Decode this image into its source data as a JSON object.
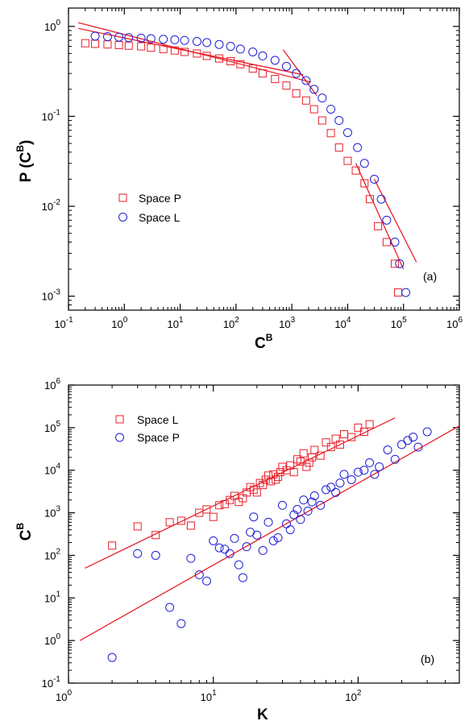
{
  "colors": {
    "space_p": "#e8202a",
    "space_l": "#1f1fd6",
    "fit_line": "#e8202a",
    "axes": "#000000"
  },
  "chart_data": [
    {
      "type": "scatter",
      "panel_label": "(a)",
      "xlabel_base": "C",
      "xlabel_sup": "B",
      "ylabel_pre": "P (C",
      "ylabel_sup": "B",
      "ylabel_post": ")",
      "xscale": "log",
      "yscale": "log",
      "xlim": [
        0.1,
        1000000
      ],
      "ylim": [
        0.0007,
        1.6
      ],
      "x_ticks": [
        {
          "v": 0.1,
          "m": "-1"
        },
        {
          "v": 1,
          "m": "0"
        },
        {
          "v": 10,
          "m": "1"
        },
        {
          "v": 100,
          "m": "2"
        },
        {
          "v": 1000,
          "m": "3"
        },
        {
          "v": 10000,
          "m": "4"
        },
        {
          "v": 100000,
          "m": "5"
        },
        {
          "v": 1000000,
          "m": "6"
        }
      ],
      "y_ticks": [
        {
          "v": 0.001,
          "m": "-3"
        },
        {
          "v": 0.01,
          "m": "-2"
        },
        {
          "v": 0.1,
          "m": "-1"
        },
        {
          "v": 1,
          "m": "0"
        }
      ],
      "legend_position": "center-left",
      "series": [
        {
          "name": "Space P",
          "marker": "square",
          "color": "#e8202a",
          "x": [
            0.2,
            0.3,
            0.5,
            0.8,
            1.2,
            2,
            3,
            5,
            8,
            12,
            20,
            30,
            50,
            80,
            120,
            200,
            300,
            500,
            800,
            1200,
            1800,
            2500,
            3500,
            5000,
            7000,
            10000,
            14000,
            20000,
            25000,
            35000,
            50000,
            70000,
            80000
          ],
          "y": [
            0.65,
            0.64,
            0.63,
            0.62,
            0.61,
            0.6,
            0.58,
            0.56,
            0.54,
            0.52,
            0.5,
            0.47,
            0.44,
            0.41,
            0.38,
            0.34,
            0.3,
            0.26,
            0.22,
            0.18,
            0.15,
            0.12,
            0.09,
            0.065,
            0.045,
            0.032,
            0.025,
            0.018,
            0.012,
            0.006,
            0.004,
            0.0023,
            0.0011
          ]
        },
        {
          "name": "Space L",
          "marker": "circle",
          "color": "#1f1fd6",
          "x": [
            0.3,
            0.5,
            0.8,
            1.2,
            2,
            3,
            5,
            8,
            12,
            20,
            30,
            50,
            80,
            120,
            200,
            300,
            500,
            800,
            1200,
            1800,
            2500,
            3500,
            5000,
            7000,
            10000,
            15000,
            20000,
            30000,
            40000,
            50000,
            70000,
            85000,
            110000
          ],
          "y": [
            0.78,
            0.77,
            0.76,
            0.75,
            0.74,
            0.73,
            0.72,
            0.71,
            0.7,
            0.68,
            0.66,
            0.63,
            0.6,
            0.56,
            0.52,
            0.47,
            0.42,
            0.36,
            0.3,
            0.25,
            0.2,
            0.16,
            0.12,
            0.09,
            0.066,
            0.045,
            0.03,
            0.02,
            0.012,
            0.007,
            0.004,
            0.0023,
            0.0011
          ]
        }
      ],
      "fit_lines": [
        {
          "x": [
            0.15,
            2200
          ],
          "y": [
            1.1,
            0.24
          ]
        },
        {
          "x": [
            0.15,
            1600
          ],
          "y": [
            0.95,
            0.29
          ]
        },
        {
          "x": [
            700,
            2800
          ],
          "y": [
            0.55,
            0.17
          ]
        },
        {
          "x": [
            30000,
            170000
          ],
          "y": [
            0.02,
            0.0024
          ]
        },
        {
          "x": [
            14000,
            100000
          ],
          "y": [
            0.03,
            0.002
          ]
        }
      ]
    },
    {
      "type": "scatter",
      "panel_label": "(b)",
      "xlabel_base": "K",
      "xlabel_sup": "",
      "ylabel_pre": "C",
      "ylabel_sup": "B",
      "ylabel_post": "",
      "xscale": "log",
      "yscale": "log",
      "xlim": [
        1,
        500
      ],
      "ylim": [
        0.1,
        1000000
      ],
      "x_ticks": [
        {
          "v": 1,
          "m": "0"
        },
        {
          "v": 10,
          "m": "1"
        },
        {
          "v": 100,
          "m": "2"
        }
      ],
      "y_ticks": [
        {
          "v": 0.1,
          "m": "-1"
        },
        {
          "v": 1,
          "m": "0"
        },
        {
          "v": 10,
          "m": "1"
        },
        {
          "v": 100,
          "m": "2"
        },
        {
          "v": 1000,
          "m": "3"
        },
        {
          "v": 10000,
          "m": "4"
        },
        {
          "v": 100000,
          "m": "5"
        },
        {
          "v": 1000000,
          "m": "6"
        }
      ],
      "legend_position": "top-left",
      "series": [
        {
          "name": "Space L",
          "marker": "square",
          "color": "#e8202a",
          "x": [
            2,
            3,
            4,
            5,
            6,
            7,
            8,
            9,
            10,
            11,
            12,
            13,
            14,
            15,
            16,
            17,
            18,
            19,
            20,
            21,
            22,
            23,
            24,
            25,
            26,
            27,
            28,
            29,
            30,
            32,
            34,
            36,
            38,
            40,
            42,
            44,
            46,
            48,
            50,
            55,
            60,
            65,
            70,
            75,
            80,
            90,
            100,
            110,
            120
          ],
          "y": [
            170,
            480,
            300,
            600,
            650,
            500,
            1000,
            1200,
            800,
            1500,
            1600,
            2000,
            2500,
            1800,
            2200,
            3000,
            4000,
            3500,
            3000,
            5000,
            4500,
            6000,
            7500,
            5500,
            8000,
            6000,
            7000,
            9000,
            12000,
            10000,
            13000,
            9000,
            18000,
            16000,
            25000,
            12000,
            15000,
            20000,
            30000,
            22000,
            45000,
            35000,
            55000,
            40000,
            70000,
            60000,
            100000,
            80000,
            120000
          ]
        },
        {
          "name": "Space P",
          "marker": "circle",
          "color": "#1f1fd6",
          "x": [
            2,
            3,
            4,
            5,
            6,
            7,
            8,
            9,
            10,
            11,
            12,
            13,
            14,
            15,
            16,
            17,
            18,
            19,
            20,
            22,
            24,
            26,
            28,
            30,
            32,
            34,
            36,
            38,
            40,
            42,
            45,
            48,
            50,
            55,
            60,
            65,
            70,
            75,
            80,
            90,
            100,
            110,
            120,
            130,
            140,
            160,
            180,
            200,
            220,
            240,
            260,
            300
          ],
          "y": [
            0.4,
            110,
            100,
            6,
            2.5,
            85,
            35,
            25,
            220,
            150,
            140,
            110,
            250,
            60,
            30,
            160,
            350,
            800,
            300,
            130,
            600,
            220,
            260,
            1500,
            550,
            400,
            900,
            1200,
            700,
            2000,
            1100,
            1800,
            2500,
            1500,
            3500,
            4000,
            3000,
            5000,
            8000,
            6000,
            9000,
            10000,
            15000,
            8000,
            12000,
            30000,
            18000,
            40000,
            50000,
            60000,
            35000,
            80000
          ]
        }
      ],
      "fit_lines": [
        {
          "x": [
            1.3,
            180
          ],
          "y": [
            50,
            170000
          ]
        },
        {
          "x": [
            1.2,
            500
          ],
          "y": [
            1.0,
            110000
          ]
        }
      ]
    }
  ]
}
